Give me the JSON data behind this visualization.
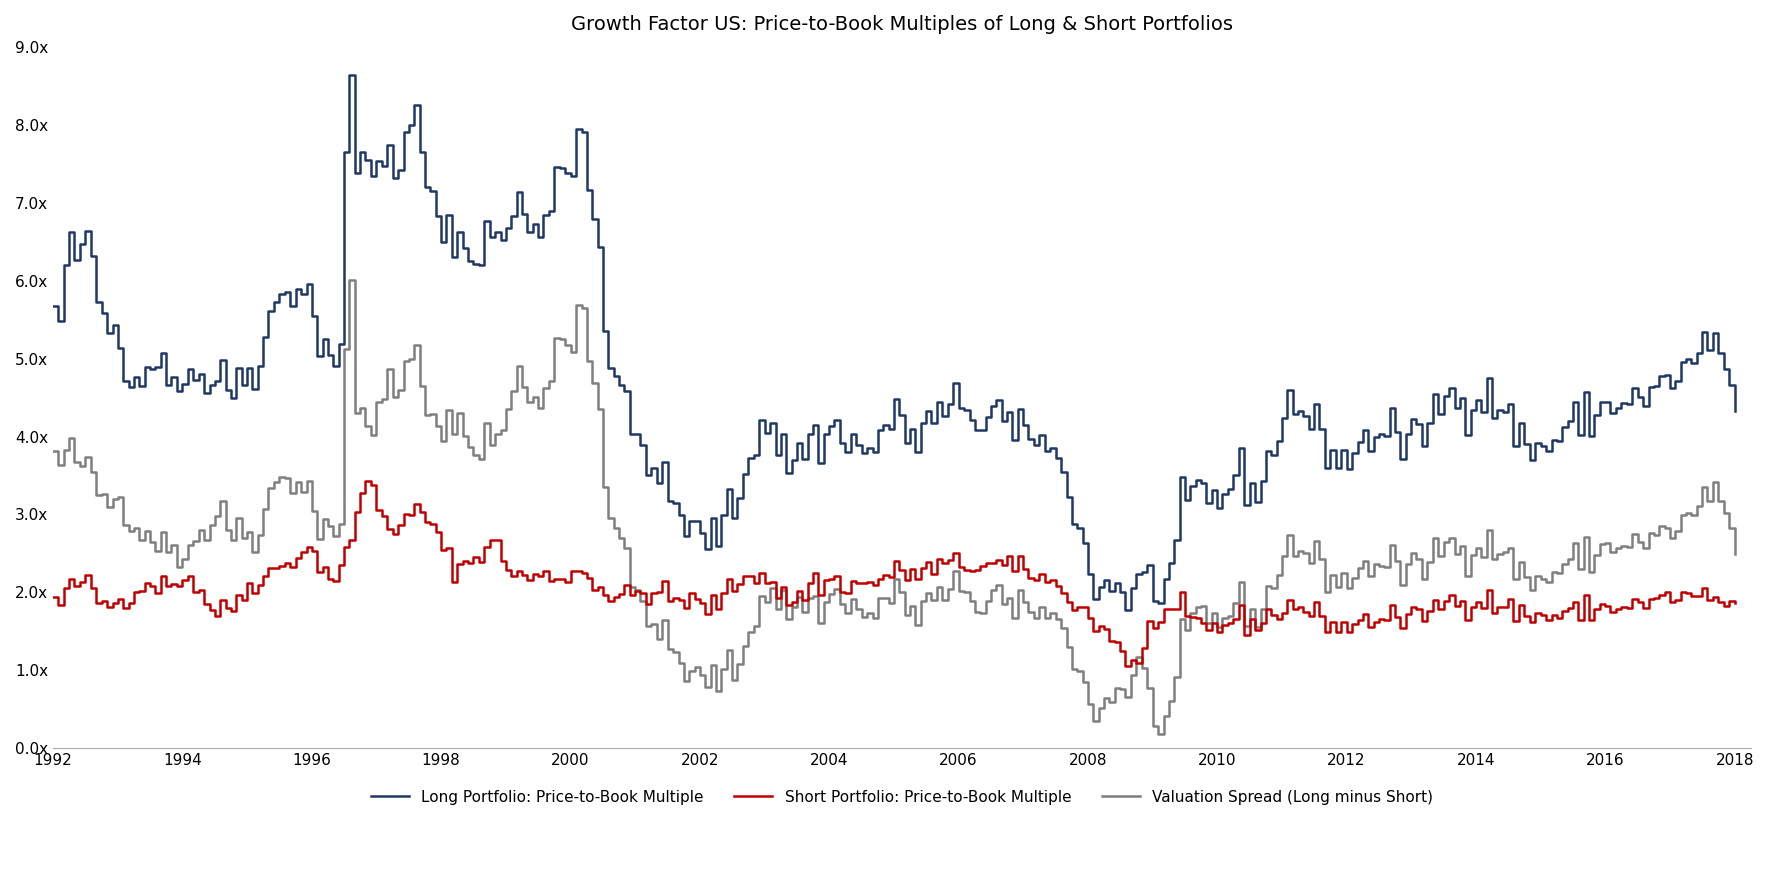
{
  "title": "Growth Factor US: Price-to-Book Multiples of Long & Short Portfolios",
  "ylim": [
    0.0,
    9.0
  ],
  "yticks": [
    0.0,
    1.0,
    2.0,
    3.0,
    4.0,
    5.0,
    6.0,
    7.0,
    8.0,
    9.0
  ],
  "ytick_labels": [
    "0.0x",
    "1.0x",
    "2.0x",
    "3.0x",
    "4.0x",
    "5.0x",
    "6.0x",
    "7.0x",
    "8.0x",
    "9.0x"
  ],
  "xticks": [
    1992,
    1994,
    1996,
    1998,
    2000,
    2002,
    2004,
    2006,
    2008,
    2010,
    2012,
    2014,
    2016,
    2018
  ],
  "xlim": [
    1992.0,
    2018.25
  ],
  "long_color": "#1F3864",
  "short_color": "#C00000",
  "spread_color": "#7F7F7F",
  "long_label": "Long Portfolio: Price-to-Book Multiple",
  "short_label": "Short Portfolio: Price-to-Book Multiple",
  "spread_label": "Valuation Spread (Long minus Short)",
  "title_fontsize": 14,
  "legend_fontsize": 11,
  "tick_fontsize": 11,
  "line_width": 1.8,
  "background_color": "#ffffff"
}
